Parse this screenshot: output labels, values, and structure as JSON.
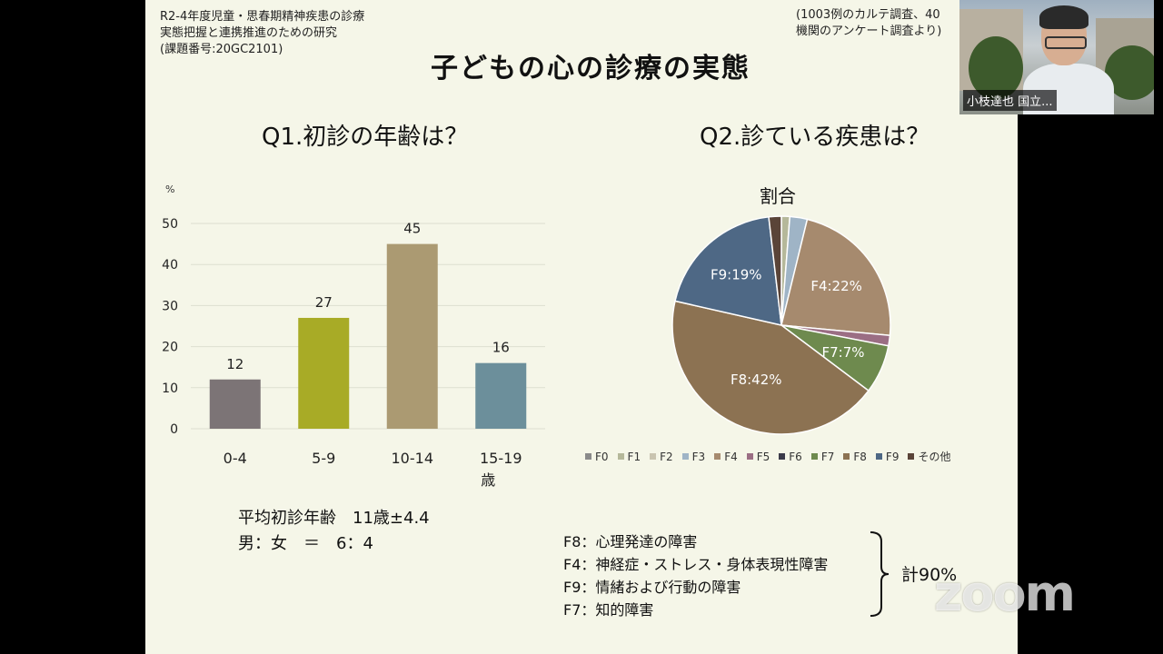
{
  "meta": {
    "left_lines": [
      "R2-4年度児童・思春期精神疾患の診療",
      "実態把握と連携推進のための研究",
      "(課題番号:20GC2101)"
    ],
    "right_lines": [
      "(1003例のカルテ調査、40",
      "機関のアンケート調査より)"
    ]
  },
  "slide": {
    "title": "子どもの心の診療の実態",
    "q1": "Q1.初診の年齢は？",
    "q2": "Q2.診ている疾患は？",
    "pie_title": "割合",
    "avg_age": "平均初診年齢　11歳±4.4",
    "sex_ratio": "男：女　＝　6：4",
    "notes": [
      "F8：心理発達の障害",
      "F4：神経症・ストレス・身体表現性障害",
      "F9：情緒および行動の障害",
      "F7：知的障害"
    ],
    "total": "計90%"
  },
  "chart_data": [
    {
      "type": "bar",
      "ylabel": "%",
      "ylim": [
        0,
        50
      ],
      "yticks": [
        "0",
        "10",
        "20",
        "30",
        "40",
        "50"
      ],
      "categories": [
        "0-4",
        "5-9",
        "10-14",
        "15-19"
      ],
      "x_unit": "歳",
      "values": [
        12,
        27,
        45,
        16
      ],
      "colors": [
        "#7c7476",
        "#a8ab26",
        "#ab9a72",
        "#6c8f9b"
      ],
      "grid": true
    },
    {
      "type": "pie",
      "title": "割合",
      "legend_position": "bottom",
      "labels": [
        "F0",
        "F1",
        "F2",
        "F3",
        "F4",
        "F5",
        "F6",
        "F7",
        "F8",
        "F9",
        "その他"
      ],
      "values": [
        0,
        1.2,
        0,
        2.5,
        22,
        1.5,
        0,
        7,
        42,
        19,
        1.8
      ],
      "display_labels": [
        "",
        "",
        "",
        "",
        "F4:22%",
        "",
        "",
        "F7:7%",
        "F8:42%",
        "F9:19%",
        ""
      ],
      "colors": [
        "#8a8a8a",
        "#b5b89a",
        "#c9c4b0",
        "#9fb4c6",
        "#a68a6e",
        "#9b6e84",
        "#3a3a4a",
        "#6e8a4e",
        "#8c7252",
        "#4e6885",
        "#5a4438"
      ]
    }
  ],
  "video": {
    "participant_name": "小枝達也 国立..."
  },
  "watermark": {
    "text": "zoom"
  }
}
